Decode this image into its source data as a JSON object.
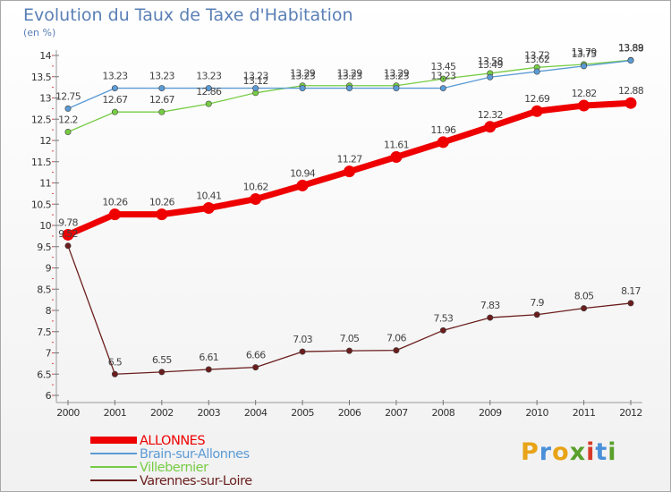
{
  "chart_data": {
    "type": "line",
    "title": "Evolution du Taux de Taxe d'Habitation",
    "subtitle": "(en %)",
    "x": [
      "2000",
      "2001",
      "2002",
      "2003",
      "2004",
      "2005",
      "2006",
      "2007",
      "2008",
      "2009",
      "2010",
      "2011",
      "2012"
    ],
    "ylim": [
      6,
      14
    ],
    "y_ticks": [
      "6",
      "6.5",
      "7",
      "7.5",
      "8",
      "8.5",
      "9",
      "9.5",
      "10",
      "10.5",
      "11",
      "11.5",
      "12",
      "12.5",
      "13",
      "13.5",
      "14"
    ],
    "grid": false,
    "legend_position": "bottom-left",
    "series": [
      {
        "name": "ALLONNES",
        "color": "#ee0000",
        "values": [
          9.78,
          10.26,
          10.26,
          10.41,
          10.62,
          10.94,
          11.27,
          11.61,
          11.96,
          12.32,
          12.69,
          12.82,
          12.88
        ],
        "labels": [
          "9.78",
          "10.26",
          "10.26",
          "10.41",
          "10.62",
          "10.94",
          "11.27",
          "11.61",
          "11.96",
          "12.32",
          "12.69",
          "12.82",
          "12.88"
        ]
      },
      {
        "name": "Brain-sur-Allonnes",
        "color": "#5b9bd5",
        "values": [
          12.75,
          13.23,
          13.23,
          13.23,
          13.23,
          13.23,
          13.23,
          13.23,
          13.23,
          13.49,
          13.62,
          13.75,
          13.88
        ],
        "labels": [
          "12.75",
          "13.23",
          "13.23",
          "13.23",
          "13.23",
          "13.23",
          "13.23",
          "13.23",
          "13.23",
          "13.49",
          "13.62",
          "13.75",
          "13.88"
        ]
      },
      {
        "name": "Villebernier",
        "color": "#77cc44",
        "values": [
          12.2,
          12.67,
          12.67,
          12.86,
          13.12,
          13.29,
          13.29,
          13.29,
          13.45,
          13.58,
          13.72,
          13.79,
          13.89
        ],
        "labels": [
          "12.2",
          "12.67",
          "12.67",
          "12.86",
          "13.12",
          "13.29",
          "13.29",
          "13.29",
          "13.45",
          "13.58",
          "13.72",
          "13.79",
          "13.89"
        ]
      },
      {
        "name": "Varennes-sur-Loire",
        "color": "#6b1d1d",
        "values": [
          9.52,
          6.5,
          6.55,
          6.61,
          6.66,
          7.03,
          7.05,
          7.06,
          7.53,
          7.83,
          7.9,
          8.05,
          8.17
        ],
        "labels": [
          "9.52",
          "6.5",
          "6.55",
          "6.61",
          "6.66",
          "7.03",
          "7.05",
          "7.06",
          "7.53",
          "7.83",
          "7.9",
          "8.05",
          "8.17"
        ]
      }
    ]
  },
  "logo": {
    "letters": [
      "P",
      "r",
      "o",
      "x",
      "i",
      "t",
      "i"
    ],
    "colors": [
      "#e8a317",
      "#4a90d9",
      "#e8a317",
      "#5aa02c",
      "#d83a2a",
      "#4a90d9",
      "#5aa02c"
    ]
  }
}
